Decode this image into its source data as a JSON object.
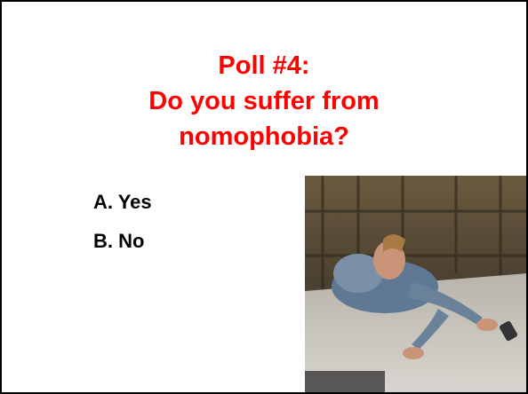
{
  "slide": {
    "title_lines": [
      "Poll #4:",
      "Do you suffer from",
      "nomophobia?"
    ],
    "options": [
      "A. Yes",
      "B. No"
    ]
  }
}
